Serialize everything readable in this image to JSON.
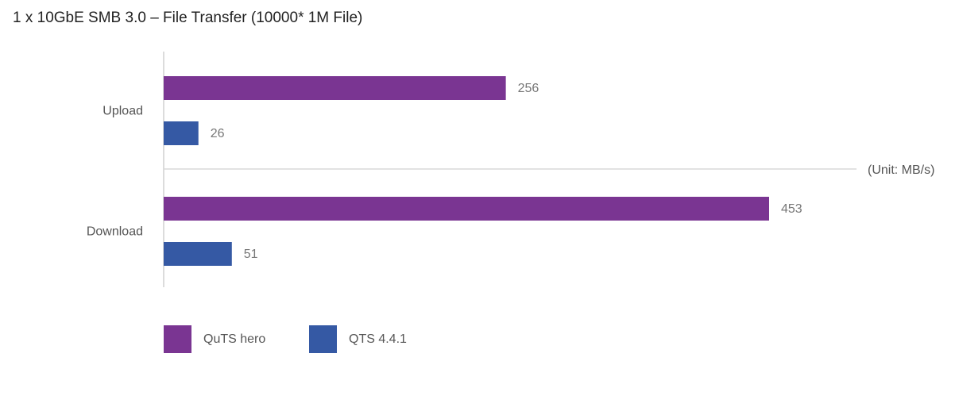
{
  "chart_data": {
    "type": "barh",
    "title": "1 x 10GbE SMB 3.0 – File Transfer (10000* 1M File)",
    "unit_label": "(Unit: MB/s)",
    "categories": [
      "Upload",
      "Download"
    ],
    "series": [
      {
        "name": "QuTS hero",
        "color": "#7a3592",
        "values": [
          256,
          453
        ]
      },
      {
        "name": "QTS 4.4.1",
        "color": "#3559a4",
        "values": [
          26,
          51
        ]
      }
    ]
  }
}
